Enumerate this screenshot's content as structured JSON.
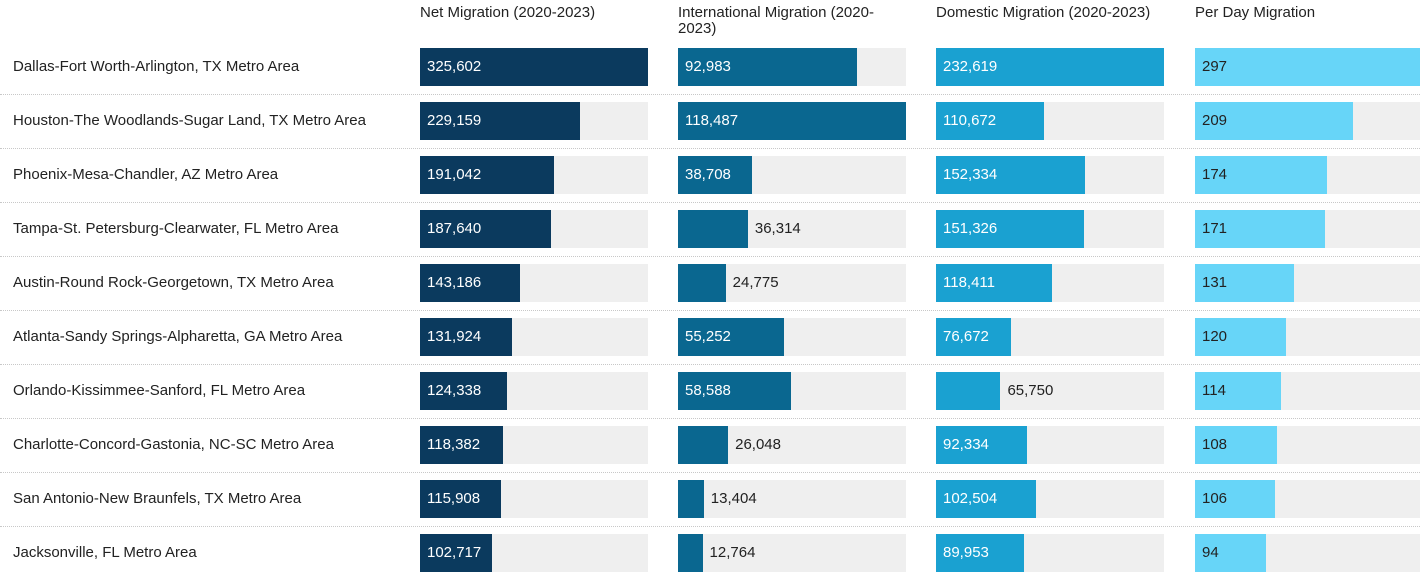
{
  "chart_data": {
    "type": "table-bars",
    "categories": [
      "Dallas-Fort Worth-Arlington, TX Metro Area",
      "Houston-The Woodlands-Sugar Land, TX Metro Area",
      "Phoenix-Mesa-Chandler, AZ Metro Area",
      "Tampa-St. Petersburg-Clearwater, FL Metro Area",
      "Austin-Round Rock-Georgetown, TX Metro Area",
      "Atlanta-Sandy Springs-Alpharetta, GA Metro Area",
      "Orlando-Kissimmee-Sanford, FL Metro Area",
      "Charlotte-Concord-Gastonia, NC-SC Metro Area",
      "San Antonio-New Braunfels, TX Metro Area",
      "Jacksonville, FL Metro Area"
    ],
    "series": [
      {
        "name": "Net Migration (2020-2023)",
        "color": "#0b3a5e",
        "values": [
          325602,
          229159,
          191042,
          187640,
          143186,
          131924,
          124338,
          118382,
          115908,
          102717
        ],
        "value_labels": [
          "325,602",
          "229,159",
          "191,042",
          "187,640",
          "143,186",
          "131,924",
          "124,338",
          "118,382",
          "115,908",
          "102,717"
        ]
      },
      {
        "name": "International Migration (2020-2023)",
        "color": "#0a6790",
        "values": [
          92983,
          118487,
          38708,
          36314,
          24775,
          55252,
          58588,
          26048,
          13404,
          12764
        ],
        "value_labels": [
          "92,983",
          "118,487",
          "38,708",
          "36,314",
          "24,775",
          "55,252",
          "58,588",
          "26,048",
          "13,404",
          "12,764"
        ]
      },
      {
        "name": "Domestic Migration (2020-2023)",
        "color": "#1aa1d1",
        "values": [
          232619,
          110672,
          152334,
          151326,
          118411,
          76672,
          65750,
          92334,
          102504,
          89953
        ],
        "value_labels": [
          "232,619",
          "110,672",
          "152,334",
          "151,326",
          "118,411",
          "76,672",
          "65,750",
          "92,334",
          "102,504",
          "89,953"
        ]
      },
      {
        "name": "Per Day Migration",
        "color": "#67d5f8",
        "values": [
          297,
          209,
          174,
          171,
          131,
          120,
          114,
          108,
          106,
          94
        ]
      }
    ]
  }
}
